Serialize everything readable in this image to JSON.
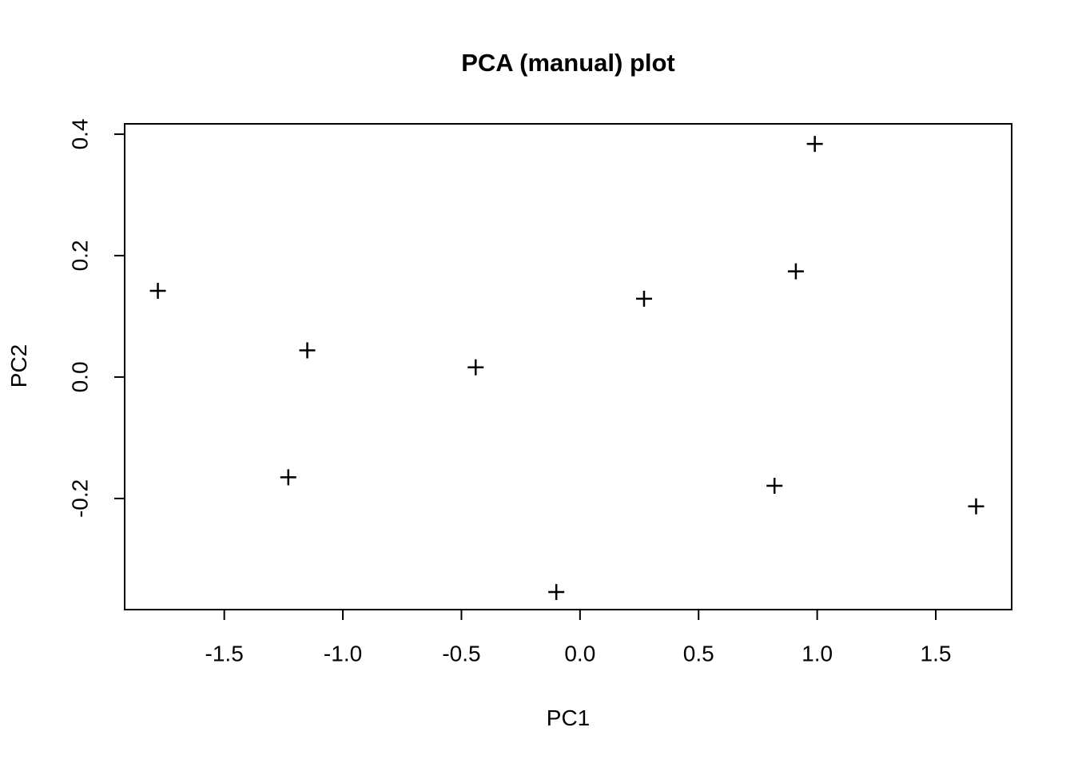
{
  "page": {
    "background_color": "#ffffff",
    "foreground_color": "#000000"
  },
  "chart_data": {
    "type": "scatter",
    "title": "PCA (manual) plot",
    "xlabel": "PC1",
    "ylabel": "PC2",
    "marker": "plus",
    "marker_color": "#000000",
    "grid": false,
    "legend": null,
    "xlim": [
      -1.92,
      1.82
    ],
    "ylim": [
      -0.383,
      0.417
    ],
    "x_axis": {
      "tick_values": [
        -1.5,
        -1.0,
        -0.5,
        0.0,
        0.5,
        1.0,
        1.5
      ],
      "tick_labels": [
        "-1.5",
        "-1.0",
        "-0.5",
        "0.0",
        "0.5",
        "1.0",
        "1.5"
      ]
    },
    "y_axis": {
      "tick_values": [
        -0.2,
        0.0,
        0.2,
        0.4
      ],
      "tick_labels": [
        "-0.2",
        "0.0",
        "0.2",
        "0.4"
      ]
    },
    "points": [
      {
        "x": -1.78,
        "y": 0.142
      },
      {
        "x": -1.15,
        "y": 0.044
      },
      {
        "x": -1.23,
        "y": -0.165
      },
      {
        "x": -0.44,
        "y": 0.016
      },
      {
        "x": -0.1,
        "y": -0.354
      },
      {
        "x": 0.27,
        "y": 0.129
      },
      {
        "x": 0.82,
        "y": -0.179
      },
      {
        "x": 0.91,
        "y": 0.174
      },
      {
        "x": 0.99,
        "y": 0.384
      },
      {
        "x": 1.67,
        "y": -0.213
      }
    ]
  }
}
